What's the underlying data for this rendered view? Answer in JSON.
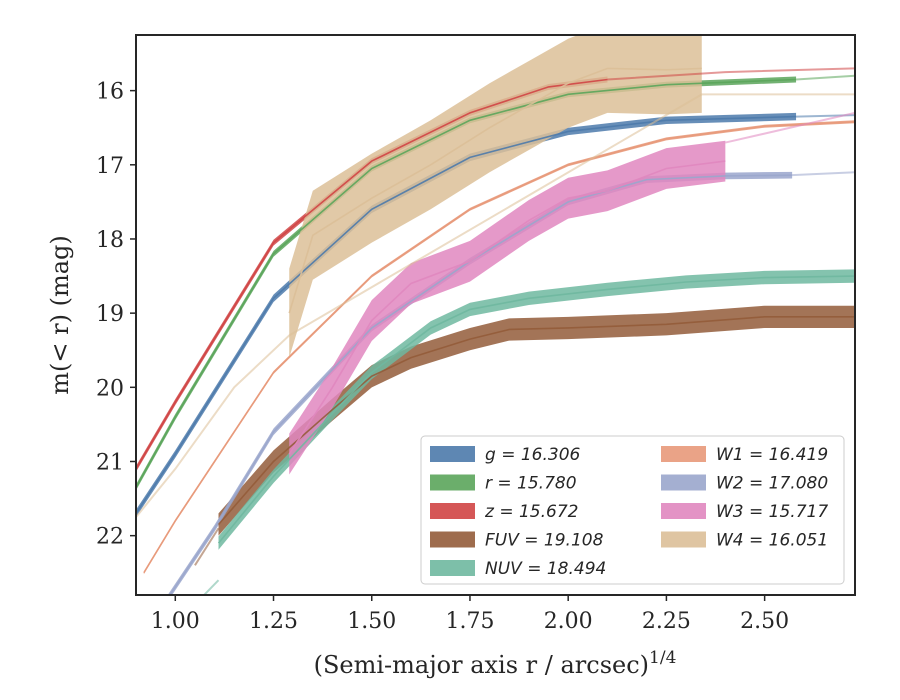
{
  "chart_data": {
    "type": "line",
    "xlabel": "(Semi-major axis r / arcsec)",
    "xlabel_exponent": "1/4",
    "ylabel": "m(< r) (mag)",
    "xlim": [
      0.9,
      2.73
    ],
    "ylim": [
      22.8,
      15.25
    ],
    "y_inverted": true,
    "grid": false,
    "legend_position": "lower-right",
    "x_ticks": [
      "1.00",
      "1.25",
      "1.50",
      "1.75",
      "2.00",
      "2.25",
      "2.50"
    ],
    "x_tick_values": [
      1.0,
      1.25,
      1.5,
      1.75,
      2.0,
      2.25,
      2.5
    ],
    "y_ticks": [
      "16",
      "17",
      "18",
      "19",
      "20",
      "21",
      "22"
    ],
    "y_tick_values": [
      16,
      17,
      18,
      19,
      20,
      21,
      22
    ],
    "series": [
      {
        "name": "g",
        "legend": "g = 16.306",
        "color": "#4c7aab",
        "profile": [
          [
            0.9,
            21.7
          ],
          [
            1.0,
            20.9
          ],
          [
            1.25,
            18.8
          ],
          [
            1.5,
            17.6
          ],
          [
            1.75,
            16.9
          ],
          [
            2.0,
            16.55
          ],
          [
            2.25,
            16.4
          ],
          [
            2.58,
            16.35
          ]
        ],
        "band_width": 0.1,
        "model": [
          [
            2.58,
            16.35
          ],
          [
            2.73,
            16.33
          ]
        ]
      },
      {
        "name": "r",
        "legend": "r = 15.780",
        "color": "#5ba55b",
        "profile": [
          [
            0.9,
            21.35
          ],
          [
            1.0,
            20.4
          ],
          [
            1.25,
            18.2
          ],
          [
            1.5,
            17.05
          ],
          [
            1.75,
            16.4
          ],
          [
            2.0,
            16.05
          ],
          [
            2.25,
            15.92
          ],
          [
            2.58,
            15.85
          ]
        ],
        "band_width": 0.08,
        "model": [
          [
            2.58,
            15.85
          ],
          [
            2.73,
            15.8
          ]
        ]
      },
      {
        "name": "z",
        "legend": "z = 15.672",
        "color": "#d04545",
        "profile": [
          [
            0.9,
            21.1
          ],
          [
            1.0,
            20.2
          ],
          [
            1.25,
            18.05
          ],
          [
            1.5,
            16.95
          ],
          [
            1.75,
            16.3
          ],
          [
            1.95,
            15.95
          ],
          [
            2.1,
            15.85
          ]
        ],
        "band_width": 0.08,
        "model": [
          [
            2.1,
            15.85
          ],
          [
            2.4,
            15.75
          ],
          [
            2.73,
            15.7
          ]
        ]
      },
      {
        "name": "FUV",
        "legend": "FUV = 19.108",
        "color": "#935c3a",
        "profile": [
          [
            1.11,
            21.85
          ],
          [
            1.25,
            21.0
          ],
          [
            1.4,
            20.3
          ],
          [
            1.5,
            19.85
          ],
          [
            1.6,
            19.6
          ],
          [
            1.75,
            19.35
          ],
          [
            1.85,
            19.22
          ],
          [
            2.0,
            19.2
          ],
          [
            2.25,
            19.15
          ],
          [
            2.5,
            19.05
          ],
          [
            2.73,
            19.05
          ]
        ],
        "band_width": 0.3,
        "model": [
          [
            1.05,
            22.4
          ],
          [
            1.11,
            21.9
          ]
        ]
      },
      {
        "name": "NUV",
        "legend": "NUV = 18.494",
        "color": "#6fb8a0",
        "profile": [
          [
            1.11,
            22.1
          ],
          [
            1.25,
            21.2
          ],
          [
            1.4,
            20.35
          ],
          [
            1.5,
            19.8
          ],
          [
            1.65,
            19.2
          ],
          [
            1.75,
            18.95
          ],
          [
            1.9,
            18.8
          ],
          [
            2.1,
            18.68
          ],
          [
            2.3,
            18.58
          ],
          [
            2.5,
            18.52
          ],
          [
            2.73,
            18.5
          ]
        ],
        "band_width": 0.18,
        "model": [
          [
            1.0,
            23.2
          ],
          [
            1.11,
            22.6
          ]
        ]
      },
      {
        "name": "W1",
        "legend": "W1 = 16.419",
        "color": "#e8997a",
        "profile": [
          [
            0.92,
            22.5
          ],
          [
            1.0,
            21.8
          ],
          [
            1.25,
            19.8
          ],
          [
            1.5,
            18.5
          ],
          [
            1.75,
            17.6
          ],
          [
            2.0,
            17.0
          ],
          [
            2.25,
            16.65
          ],
          [
            2.5,
            16.48
          ],
          [
            2.73,
            16.42
          ]
        ],
        "band_width": 0.04,
        "model": []
      },
      {
        "name": "W2",
        "legend": "W2 = 17.080",
        "color": "#9aa6cc",
        "profile": [
          [
            0.98,
            22.85
          ],
          [
            1.1,
            21.9
          ],
          [
            1.25,
            20.6
          ],
          [
            1.5,
            19.2
          ],
          [
            1.75,
            18.3
          ],
          [
            2.0,
            17.5
          ],
          [
            2.2,
            17.2
          ],
          [
            2.4,
            17.15
          ],
          [
            2.57,
            17.14
          ]
        ],
        "band_width": 0.09,
        "model": [
          [
            2.57,
            17.14
          ],
          [
            2.73,
            17.1
          ]
        ]
      },
      {
        "name": "W3",
        "legend": "W3 = 15.717",
        "color": "#e087bf",
        "profile": [
          [
            1.29,
            20.9
          ],
          [
            1.4,
            20.0
          ],
          [
            1.5,
            19.1
          ],
          [
            1.6,
            18.6
          ],
          [
            1.75,
            18.3
          ],
          [
            1.9,
            17.75
          ],
          [
            2.0,
            17.45
          ],
          [
            2.1,
            17.35
          ],
          [
            2.25,
            17.05
          ],
          [
            2.4,
            16.95
          ]
        ],
        "band_width": 0.55,
        "model": [
          [
            2.4,
            16.7
          ],
          [
            2.73,
            16.3
          ]
        ]
      },
      {
        "name": "W4",
        "legend": "W4 = 16.051",
        "color": "#dcbf98",
        "profile": [
          [
            1.29,
            19.0
          ],
          [
            1.35,
            17.95
          ],
          [
            1.5,
            17.45
          ],
          [
            1.65,
            17.0
          ],
          [
            1.8,
            16.5
          ],
          [
            1.9,
            16.2
          ],
          [
            2.0,
            15.9
          ],
          [
            2.1,
            15.7
          ],
          [
            2.25,
            15.72
          ],
          [
            2.34,
            15.7
          ]
        ],
        "band_width": 1.2,
        "model": [
          [
            0.9,
            21.75
          ],
          [
            1.0,
            21.1
          ],
          [
            1.15,
            20.0
          ],
          [
            1.29,
            19.3
          ],
          [
            2.34,
            16.05
          ],
          [
            2.73,
            16.05
          ]
        ]
      }
    ],
    "legend_columns": 2
  }
}
